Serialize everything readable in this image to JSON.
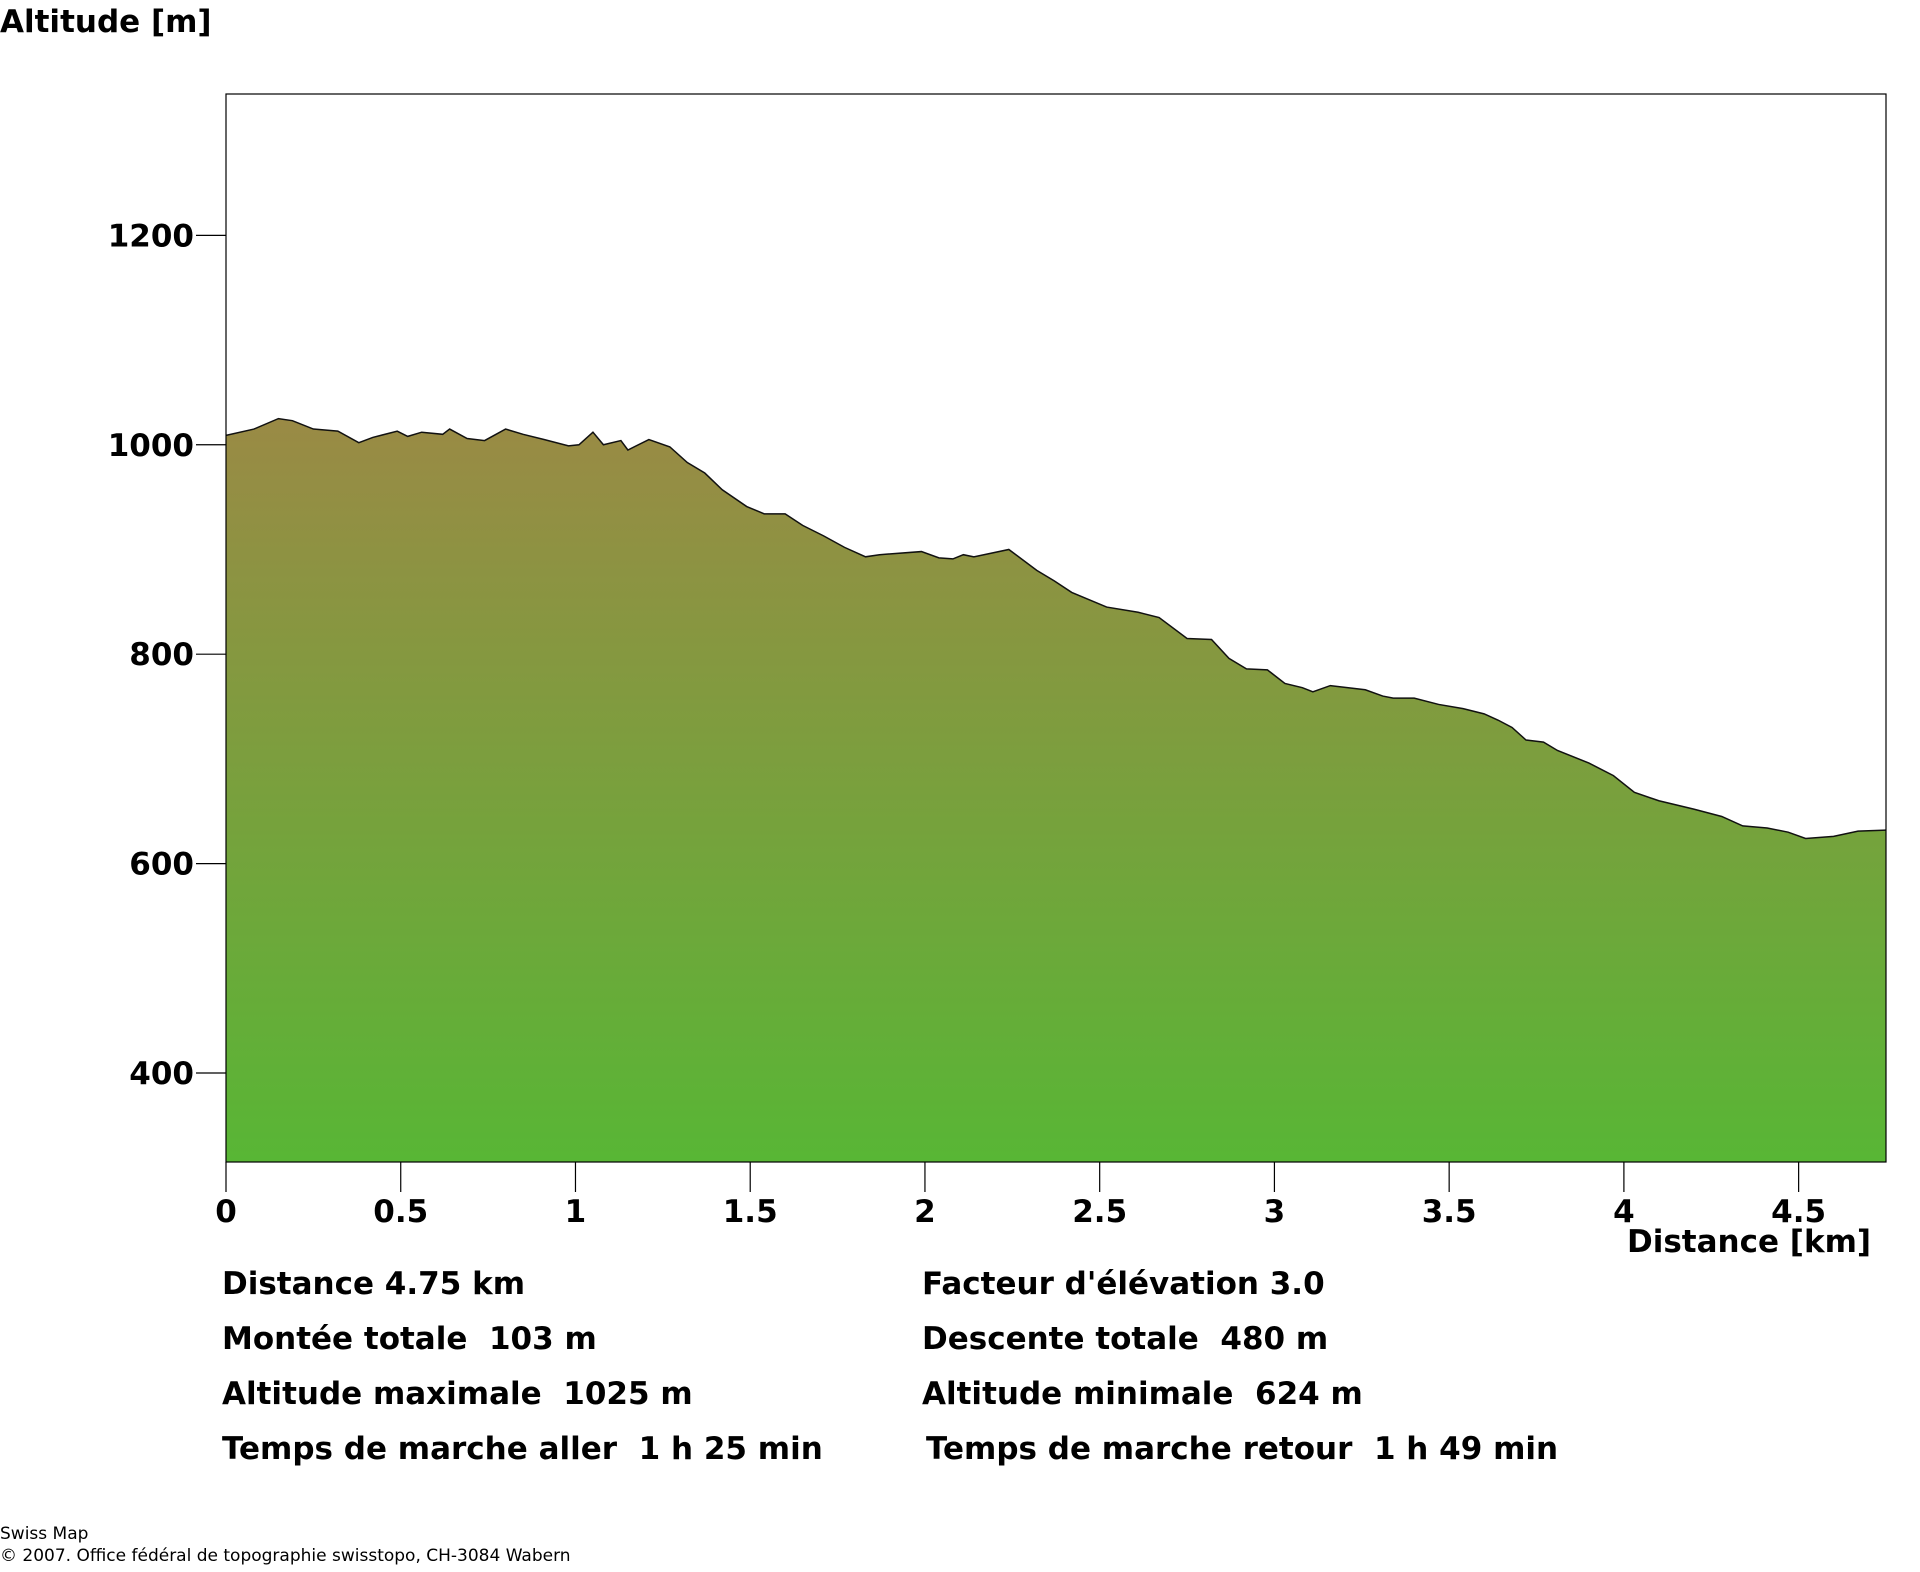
{
  "chart_data": {
    "type": "area",
    "ylabel": "Altitude [m]",
    "xlabel": "Distance [km]",
    "xlim": [
      0,
      4.75
    ],
    "ylim": [
      315,
      1335
    ],
    "xticks": [
      0,
      0.5,
      1,
      1.5,
      2,
      2.5,
      3,
      3.5,
      4,
      4.5
    ],
    "xtick_labels": [
      "0",
      "0.5",
      "1",
      "1.5",
      "2",
      "2.5",
      "3",
      "3.5",
      "4",
      "4.5"
    ],
    "yticks": [
      400,
      600,
      800,
      1000,
      1200
    ],
    "ytick_labels": [
      "400",
      "600",
      "800",
      "1000",
      "1200"
    ],
    "grid": false,
    "fill_gradient": {
      "top": "#9a8a45",
      "bottom": "#58b635"
    },
    "series": [
      {
        "x": [
          0,
          0.08,
          0.15,
          0.19,
          0.25,
          0.32,
          0.38,
          0.42,
          0.49,
          0.52,
          0.56,
          0.62,
          0.64,
          0.69,
          0.74,
          0.8,
          0.85,
          0.91,
          0.98,
          1.01,
          1.05,
          1.08,
          1.13,
          1.15,
          1.21,
          1.27,
          1.32,
          1.37,
          1.42,
          1.49,
          1.54,
          1.6,
          1.65,
          1.71,
          1.77,
          1.83,
          1.87,
          1.99,
          2.04,
          2.08,
          2.11,
          2.14,
          2.24,
          2.32,
          2.37,
          2.42,
          2.52,
          2.61,
          2.67,
          2.75,
          2.82,
          2.87,
          2.92,
          2.98,
          3.03,
          3.08,
          3.11,
          3.16,
          3.26,
          3.31,
          3.34,
          3.4,
          3.47,
          3.54,
          3.6,
          3.64,
          3.68,
          3.72,
          3.77,
          3.81,
          3.9,
          3.97,
          4.03,
          4.1,
          4.2,
          4.28,
          4.34,
          4.41,
          4.47,
          4.52,
          4.6,
          4.67,
          4.75
        ],
        "y": [
          1009,
          1015,
          1025,
          1023,
          1015,
          1013,
          1002,
          1007,
          1013,
          1008,
          1012,
          1010,
          1015,
          1006,
          1004,
          1015,
          1010,
          1005,
          999,
          1000,
          1012,
          1000,
          1004,
          995,
          1005,
          998,
          983,
          973,
          957,
          941,
          934,
          934,
          923,
          913,
          902,
          893,
          895,
          898,
          892,
          891,
          895,
          893,
          900,
          880,
          870,
          859,
          845,
          840,
          835,
          815,
          814,
          796,
          786,
          785,
          772,
          768,
          764,
          770,
          766,
          760,
          758,
          758,
          752,
          748,
          743,
          737,
          730,
          718,
          716,
          708,
          696,
          684,
          668,
          660,
          652,
          645,
          636,
          634,
          630,
          624,
          626,
          631,
          632
        ]
      }
    ]
  },
  "stats": {
    "distance": "Distance 4.75 km",
    "elevation_factor": "Facteur d'élévation 3.0",
    "total_ascent": "Montée totale  103 m",
    "total_descent": "Descente totale  480 m",
    "max_altitude": "Altitude maximale  1025 m",
    "min_altitude": "Altitude minimale  624 m",
    "time_outbound": "Temps de marche aller  1 h 25 min",
    "time_return": "Temps de marche retour  1 h 49 min"
  },
  "footer": {
    "source": "Swiss Map",
    "copyright": "© 2007. Office fédéral de topographie swisstopo, CH-3084 Wabern"
  }
}
